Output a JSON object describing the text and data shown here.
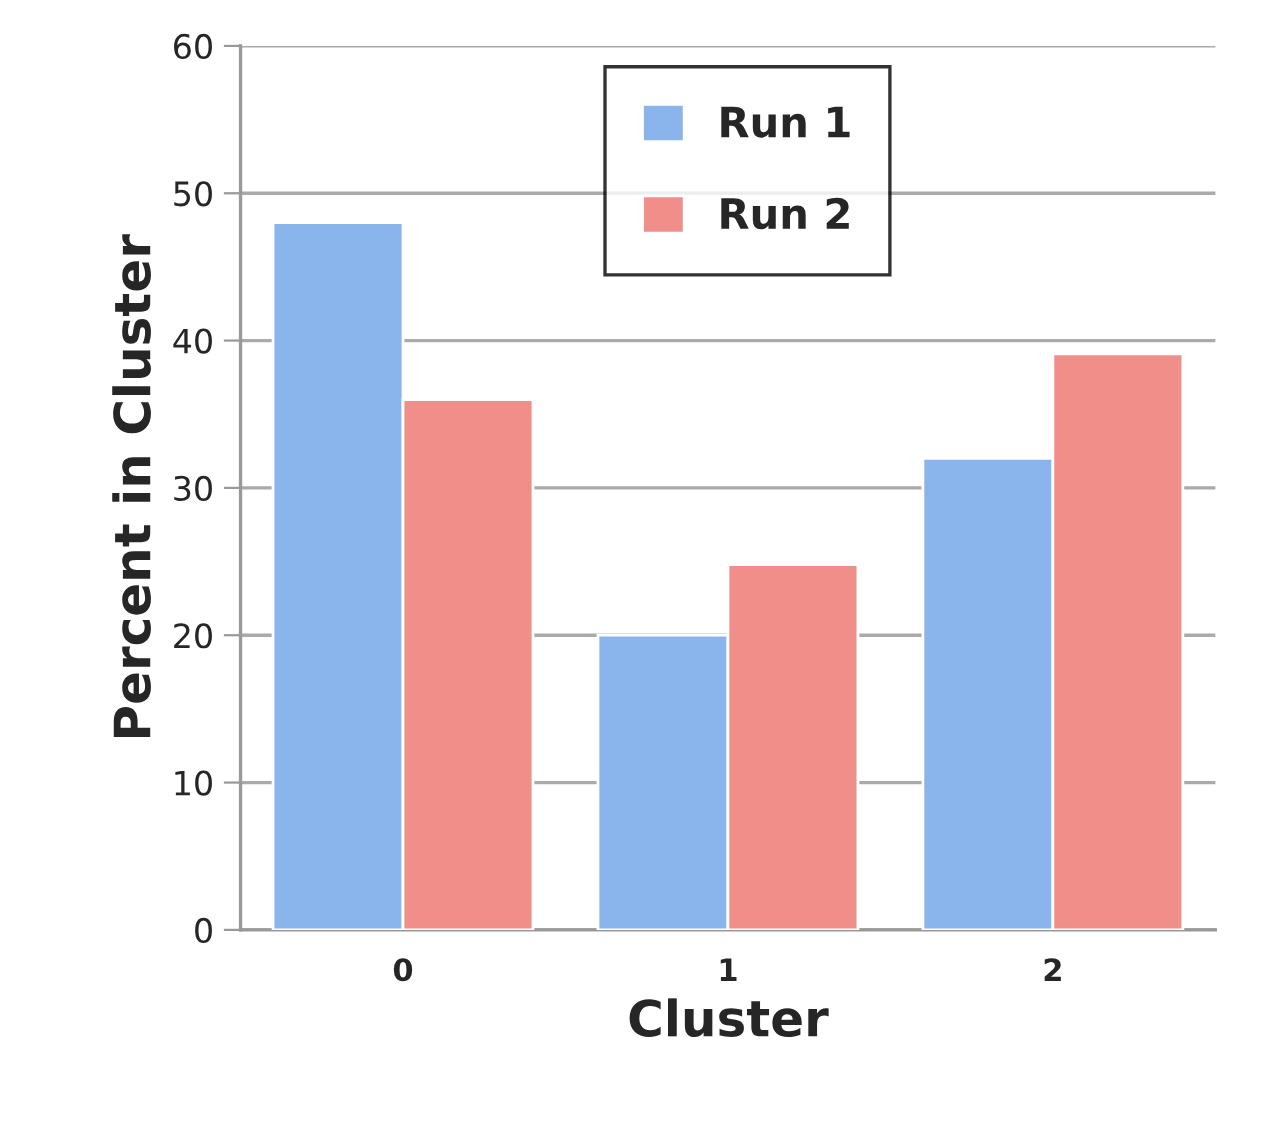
{
  "chart_data": {
    "type": "bar",
    "xlabel": "Cluster",
    "ylabel": "Percent in Cluster",
    "categories": [
      "0",
      "1",
      "2"
    ],
    "series": [
      {
        "name": "Run 1",
        "color": "#8ab4ec",
        "values": [
          48.0,
          20.0,
          32.0
        ]
      },
      {
        "name": "Run 2",
        "color": "#f08e89",
        "values": [
          36.0,
          24.8,
          39.1
        ]
      }
    ],
    "ylim": [
      0,
      60
    ],
    "yticks": [
      0,
      10,
      20,
      30,
      40,
      50,
      60
    ],
    "grid": "y",
    "legend": "top"
  }
}
